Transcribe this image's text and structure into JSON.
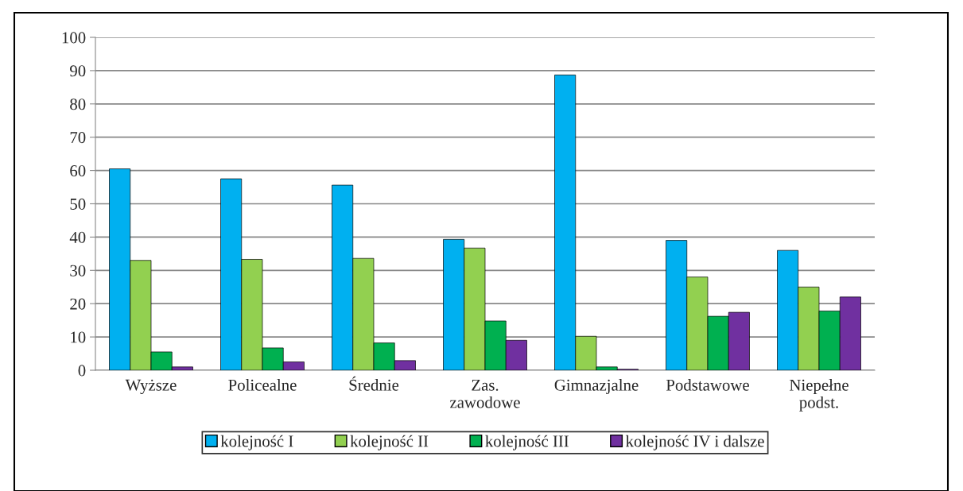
{
  "chart_data": {
    "type": "bar",
    "categories": [
      "Wyższe",
      "Policealne",
      "Średnie",
      "Zas.\nzawodowe",
      "Gimnazjalne",
      "Podstawowe",
      "Niepełne\npodst."
    ],
    "series": [
      {
        "name": "kolejność I",
        "color": "#00b0f0",
        "values": [
          60.5,
          57.5,
          55.6,
          39.3,
          88.7,
          39.0,
          36.0
        ]
      },
      {
        "name": "kolejność II",
        "color": "#92d050",
        "values": [
          33.0,
          33.3,
          33.6,
          36.7,
          10.2,
          28.0,
          25.0
        ]
      },
      {
        "name": "kolejność III",
        "color": "#00b050",
        "values": [
          5.5,
          6.7,
          8.2,
          14.8,
          1.0,
          16.2,
          17.8
        ]
      },
      {
        "name": "kolejność IV i dalsze",
        "color": "#7030a0",
        "values": [
          1.0,
          2.5,
          2.9,
          9.0,
          0.3,
          17.4,
          22.0
        ]
      }
    ],
    "ylim": [
      0,
      100
    ],
    "yticks": [
      0,
      10,
      20,
      30,
      40,
      50,
      60,
      70,
      80,
      90,
      100
    ],
    "grid": "y",
    "legend": "bottom"
  }
}
